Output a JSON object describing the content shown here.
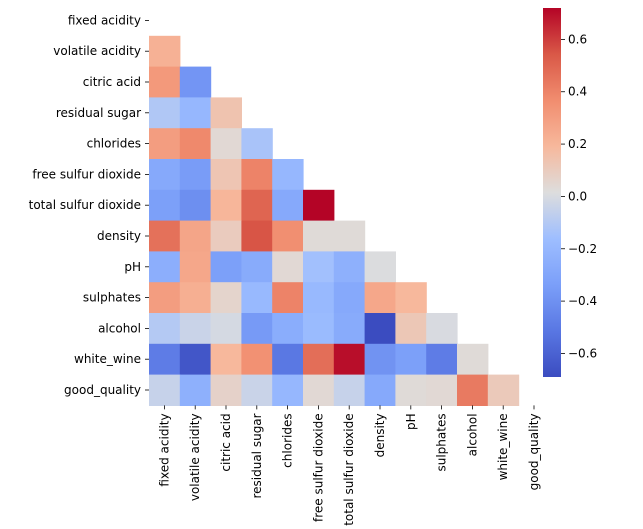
{
  "chart_data": {
    "type": "heatmap",
    "variables": [
      "fixed acidity",
      "volatile acidity",
      "citric acid",
      "residual sugar",
      "chlorides",
      "free sulfur dioxide",
      "total sulfur dioxide",
      "density",
      "pH",
      "sulphates",
      "alcohol",
      "white_wine",
      "good_quality"
    ],
    "mask": "upper-triangle-including-diagonal",
    "colormap": "coolwarm",
    "vmin": -0.69,
    "vmax": 0.72,
    "colorbar_ticks": [
      0.6,
      0.4,
      0.2,
      0.0,
      -0.2,
      -0.4,
      -0.6
    ],
    "colorbar_tick_labels": [
      "0.6",
      "0.4",
      "0.2",
      "0.0",
      "−0.2",
      "−0.4",
      "−0.6"
    ],
    "values": [
      [
        null,
        null,
        null,
        null,
        null,
        null,
        null,
        null,
        null,
        null,
        null,
        null,
        null
      ],
      [
        0.22,
        null,
        null,
        null,
        null,
        null,
        null,
        null,
        null,
        null,
        null,
        null,
        null
      ],
      [
        0.32,
        -0.38,
        null,
        null,
        null,
        null,
        null,
        null,
        null,
        null,
        null,
        null,
        null
      ],
      [
        -0.11,
        -0.2,
        0.14,
        null,
        null,
        null,
        null,
        null,
        null,
        null,
        null,
        null,
        null
      ],
      [
        0.3,
        0.38,
        0.04,
        -0.13,
        null,
        null,
        null,
        null,
        null,
        null,
        null,
        null,
        null
      ],
      [
        -0.28,
        -0.35,
        0.13,
        0.4,
        -0.2,
        null,
        null,
        null,
        null,
        null,
        null,
        null,
        null
      ],
      [
        -0.33,
        -0.41,
        0.2,
        0.5,
        -0.28,
        0.72,
        null,
        null,
        null,
        null,
        null,
        null,
        null
      ],
      [
        0.46,
        0.27,
        0.1,
        0.55,
        0.36,
        0.03,
        0.03,
        null,
        null,
        null,
        null,
        null,
        null
      ],
      [
        -0.25,
        0.26,
        -0.33,
        -0.27,
        0.04,
        -0.15,
        -0.24,
        0.01,
        null,
        null,
        null,
        null,
        null
      ],
      [
        0.3,
        0.23,
        0.06,
        -0.19,
        0.4,
        -0.19,
        -0.28,
        0.26,
        0.19,
        null,
        null,
        null,
        null
      ],
      [
        -0.1,
        -0.04,
        -0.01,
        -0.36,
        -0.26,
        -0.18,
        -0.27,
        -0.69,
        0.12,
        -0.0,
        null,
        null,
        null
      ],
      [
        -0.49,
        -0.65,
        0.19,
        0.35,
        -0.51,
        0.47,
        0.7,
        -0.39,
        -0.33,
        -0.49,
        0.03,
        null,
        null
      ],
      [
        -0.05,
        -0.24,
        0.07,
        -0.04,
        -0.2,
        0.04,
        -0.05,
        -0.28,
        0.03,
        0.04,
        0.43,
        0.11,
        null
      ]
    ]
  }
}
